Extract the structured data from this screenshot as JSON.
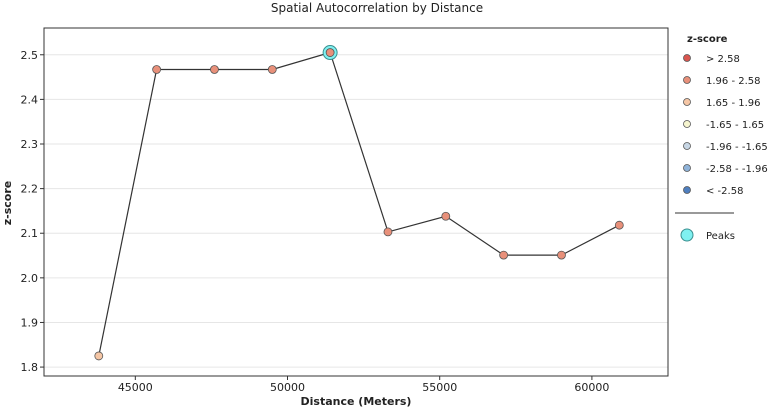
{
  "chart_data": {
    "type": "line",
    "title": "Spatial Autocorrelation by Distance",
    "xlabel": "Distance (Meters)",
    "ylabel": "z-score",
    "xlim": [
      42000,
      62500
    ],
    "ylim": [
      1.78,
      2.56
    ],
    "xticks": [
      45000,
      50000,
      55000,
      60000
    ],
    "xtick_labels": [
      "45000",
      "50000",
      "55000",
      "60000"
    ],
    "yticks": [
      1.8,
      1.9,
      2.0,
      2.1,
      2.2,
      2.3,
      2.4,
      2.5
    ],
    "ytick_labels": [
      "1.8",
      "1.9",
      "2.0",
      "2.1",
      "2.2",
      "2.3",
      "2.4",
      "2.5"
    ],
    "grid": "horizontal",
    "line_color": "#333333",
    "points": [
      {
        "x": 43800,
        "y": 1.825,
        "color": "#f5c6a5"
      },
      {
        "x": 45700,
        "y": 2.467,
        "color": "#e8907a"
      },
      {
        "x": 47600,
        "y": 2.467,
        "color": "#e8907a"
      },
      {
        "x": 49500,
        "y": 2.467,
        "color": "#e8907a"
      },
      {
        "x": 51400,
        "y": 2.505,
        "color": "#e8907a"
      },
      {
        "x": 53300,
        "y": 2.103,
        "color": "#e8907a"
      },
      {
        "x": 55200,
        "y": 2.138,
        "color": "#e8907a"
      },
      {
        "x": 57100,
        "y": 2.051,
        "color": "#e8907a"
      },
      {
        "x": 59000,
        "y": 2.051,
        "color": "#e8907a"
      },
      {
        "x": 60900,
        "y": 2.118,
        "color": "#e8907a"
      }
    ],
    "peaks": [
      {
        "x": 51400,
        "y": 2.505
      }
    ],
    "peak_color": "#7ff0f0",
    "legend": {
      "title": "z-score",
      "placement": "right",
      "items": [
        {
          "label": "> 2.58",
          "color": "#d9564f"
        },
        {
          "label": "1.96 - 2.58",
          "color": "#e8907a"
        },
        {
          "label": "1.65 - 1.96",
          "color": "#f5c6a5"
        },
        {
          "label": "-1.65 - 1.65",
          "color": "#f6f5cf"
        },
        {
          "label": "-1.96 - -1.65",
          "color": "#c7d6e4"
        },
        {
          "label": "-2.58 - -1.96",
          "color": "#8fb3d9"
        },
        {
          "label": "< -2.58",
          "color": "#4f7fbf"
        }
      ],
      "peaks_label": "Peaks"
    }
  }
}
